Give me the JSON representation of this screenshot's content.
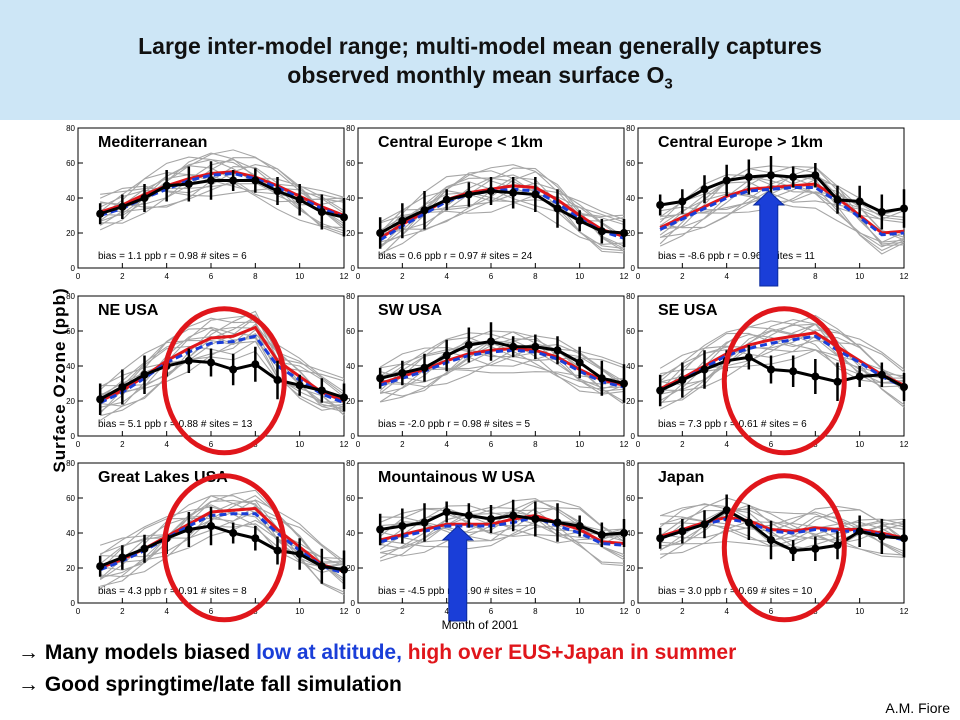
{
  "title": {
    "line1": "Large inter-model range; multi-model mean generally captures",
    "line2": "observed monthly mean surface O",
    "line2_sub": "3"
  },
  "ylabel": "Surface Ozone (ppb)",
  "xlabel": "Month of 2001",
  "bullets": [
    {
      "arrow": "→",
      "pre": " Many models biased ",
      "blue": "low at altitude,",
      "red": " high over EUS+Japan in summer"
    },
    {
      "arrow": "→",
      "text": " Good springtime/late fall simulation"
    }
  ],
  "author": "A.M. Fiore",
  "colors": {
    "observed": "#000000",
    "models": "#a6a6a6",
    "mean": "#e0161b",
    "median": "#1a3ed8",
    "highlight_circle": "#e0161b",
    "arrow": "#1a3ed8",
    "banner": "#cde6f6"
  },
  "chart_data": [
    {
      "type": "line",
      "name": "Mediterranean",
      "stats": "bias = 1.1 ppb   r = 0.98   # sites = 6",
      "x": [
        1,
        2,
        3,
        4,
        5,
        6,
        7,
        8,
        9,
        10,
        11,
        12
      ],
      "xlim": [
        0,
        12
      ],
      "ylim": [
        0,
        80
      ],
      "xticks": [
        "0",
        "2",
        "4",
        "6",
        "8",
        "10",
        "12"
      ],
      "yticks": [
        "0",
        "20",
        "40",
        "60",
        "80"
      ],
      "observed": [
        31,
        35,
        40,
        47,
        48,
        50,
        50,
        50,
        44,
        39,
        32,
        29
      ],
      "mean": [
        32,
        36,
        42,
        47,
        51,
        54,
        55,
        52,
        47,
        41,
        35,
        30
      ],
      "median": [
        30,
        34,
        40,
        45,
        50,
        53,
        54,
        51,
        46,
        40,
        34,
        29
      ],
      "highlight": "none"
    },
    {
      "type": "line",
      "name": "Central Europe < 1km",
      "stats": "bias = 0.6 ppb   r = 0.97   # sites = 24",
      "x": [
        1,
        2,
        3,
        4,
        5,
        6,
        7,
        8,
        9,
        10,
        11,
        12
      ],
      "xlim": [
        0,
        12
      ],
      "ylim": [
        0,
        80
      ],
      "xticks": [
        "0",
        "2",
        "4",
        "6",
        "8",
        "10",
        "12"
      ],
      "yticks": [
        "0",
        "20",
        "40",
        "60",
        "80"
      ],
      "observed": [
        20,
        27,
        33,
        39,
        42,
        44,
        43,
        42,
        34,
        27,
        21,
        20
      ],
      "mean": [
        17,
        25,
        32,
        39,
        43,
        45,
        47,
        46,
        39,
        30,
        22,
        18
      ],
      "median": [
        16,
        24,
        31,
        38,
        42,
        44,
        45,
        44,
        37,
        28,
        21,
        17
      ],
      "highlight": "none"
    },
    {
      "type": "line",
      "name": "Central Europe > 1km",
      "stats": "bias = -8.6 ppb   r = 0.96   # sites = 11",
      "x": [
        1,
        2,
        3,
        4,
        5,
        6,
        7,
        8,
        9,
        10,
        11,
        12
      ],
      "xlim": [
        0,
        12
      ],
      "ylim": [
        0,
        80
      ],
      "xticks": [
        "0",
        "2",
        "4",
        "6",
        "8",
        "10",
        "12"
      ],
      "yticks": [
        "0",
        "20",
        "40",
        "60",
        "80"
      ],
      "observed": [
        36,
        38,
        45,
        50,
        52,
        53,
        52,
        53,
        39,
        38,
        32,
        34
      ],
      "mean": [
        23,
        29,
        35,
        41,
        45,
        46,
        47,
        48,
        40,
        30,
        20,
        21
      ],
      "median": [
        22,
        28,
        34,
        40,
        44,
        45,
        46,
        46,
        38,
        29,
        19,
        20
      ],
      "highlight": "arrow-up"
    },
    {
      "type": "line",
      "name": "NE USA",
      "stats": "bias = 5.1 ppb   r = 0.88   # sites = 13",
      "x": [
        1,
        2,
        3,
        4,
        5,
        6,
        7,
        8,
        9,
        10,
        11,
        12
      ],
      "xlim": [
        0,
        12
      ],
      "ylim": [
        0,
        80
      ],
      "xticks": [
        "0",
        "2",
        "4",
        "6",
        "8",
        "10",
        "12"
      ],
      "yticks": [
        "0",
        "20",
        "40",
        "60",
        "80"
      ],
      "observed": [
        21,
        28,
        35,
        40,
        43,
        42,
        38,
        41,
        32,
        29,
        26,
        22
      ],
      "mean": [
        20,
        26,
        34,
        43,
        50,
        56,
        57,
        62,
        43,
        34,
        25,
        20
      ],
      "median": [
        19,
        25,
        33,
        42,
        48,
        53,
        54,
        57,
        40,
        32,
        24,
        19
      ],
      "highlight": "circle"
    },
    {
      "type": "line",
      "name": "SW USA",
      "stats": "bias = -2.0 ppb   r = 0.98   # sites = 5",
      "x": [
        1,
        2,
        3,
        4,
        5,
        6,
        7,
        8,
        9,
        10,
        11,
        12
      ],
      "xlim": [
        0,
        12
      ],
      "ylim": [
        0,
        80
      ],
      "xticks": [
        "0",
        "2",
        "4",
        "6",
        "8",
        "10",
        "12"
      ],
      "yticks": [
        "0",
        "20",
        "40",
        "60",
        "80"
      ],
      "observed": [
        33,
        36,
        39,
        46,
        52,
        54,
        51,
        51,
        49,
        42,
        33,
        30
      ],
      "mean": [
        30,
        34,
        38,
        43,
        47,
        49,
        50,
        49,
        45,
        38,
        32,
        29
      ],
      "median": [
        29,
        33,
        37,
        42,
        46,
        48,
        49,
        48,
        44,
        37,
        31,
        28
      ],
      "highlight": "none"
    },
    {
      "type": "line",
      "name": "SE USA",
      "stats": "bias = 7.3 ppb   r = 0.61   # sites = 6",
      "x": [
        1,
        2,
        3,
        4,
        5,
        6,
        7,
        8,
        9,
        10,
        11,
        12
      ],
      "xlim": [
        0,
        12
      ],
      "ylim": [
        0,
        80
      ],
      "xticks": [
        "0",
        "2",
        "4",
        "6",
        "8",
        "10",
        "12"
      ],
      "yticks": [
        "0",
        "20",
        "40",
        "60",
        "80"
      ],
      "observed": [
        26,
        32,
        38,
        43,
        45,
        38,
        37,
        34,
        31,
        34,
        35,
        28
      ],
      "mean": [
        27,
        33,
        40,
        47,
        52,
        55,
        57,
        59,
        51,
        43,
        35,
        29
      ],
      "median": [
        26,
        32,
        39,
        46,
        50,
        53,
        55,
        57,
        49,
        42,
        34,
        28
      ],
      "highlight": "circle"
    },
    {
      "type": "line",
      "name": "Great Lakes USA",
      "stats": "bias = 4.3 ppb   r = 0.91   # sites = 8",
      "x": [
        1,
        2,
        3,
        4,
        5,
        6,
        7,
        8,
        9,
        10,
        11,
        12
      ],
      "xlim": [
        0,
        12
      ],
      "ylim": [
        0,
        80
      ],
      "xticks": [
        "0",
        "2",
        "4",
        "6",
        "8",
        "10",
        "12"
      ],
      "yticks": [
        "0",
        "20",
        "40",
        "60",
        "80"
      ],
      "observed": [
        21,
        26,
        31,
        37,
        42,
        44,
        40,
        37,
        30,
        28,
        21,
        19
      ],
      "mean": [
        20,
        25,
        31,
        38,
        45,
        52,
        53,
        54,
        42,
        32,
        22,
        18
      ],
      "median": [
        19,
        24,
        30,
        37,
        44,
        50,
        51,
        51,
        40,
        30,
        21,
        17
      ],
      "highlight": "circle"
    },
    {
      "type": "line",
      "name": "Mountainous W USA",
      "stats": "bias = -4.5 ppb   r = 0.90   # sites = 10",
      "x": [
        1,
        2,
        3,
        4,
        5,
        6,
        7,
        8,
        9,
        10,
        11,
        12
      ],
      "xlim": [
        0,
        12
      ],
      "ylim": [
        0,
        80
      ],
      "xticks": [
        "0",
        "2",
        "4",
        "6",
        "8",
        "10",
        "12"
      ],
      "yticks": [
        "0",
        "20",
        "40",
        "60",
        "80"
      ],
      "observed": [
        42,
        44,
        46,
        52,
        50,
        48,
        50,
        48,
        46,
        44,
        39,
        40
      ],
      "mean": [
        36,
        39,
        42,
        45,
        45,
        45,
        48,
        50,
        46,
        42,
        35,
        34
      ],
      "median": [
        35,
        38,
        41,
        44,
        44,
        44,
        46,
        49,
        44,
        40,
        34,
        33
      ],
      "highlight": "arrow-up"
    },
    {
      "type": "line",
      "name": "Japan",
      "stats": "bias = 3.0 ppb   r = 0.69   # sites = 10",
      "x": [
        1,
        2,
        3,
        4,
        5,
        6,
        7,
        8,
        9,
        10,
        11,
        12
      ],
      "xlim": [
        0,
        12
      ],
      "ylim": [
        0,
        80
      ],
      "xticks": [
        "0",
        "2",
        "4",
        "6",
        "8",
        "10",
        "12"
      ],
      "yticks": [
        "0",
        "20",
        "40",
        "60",
        "80"
      ],
      "observed": [
        37,
        41,
        45,
        53,
        46,
        36,
        30,
        31,
        33,
        41,
        38,
        37
      ],
      "mean": [
        38,
        42,
        46,
        49,
        47,
        42,
        41,
        43,
        42,
        42,
        40,
        37
      ],
      "median": [
        37,
        41,
        45,
        48,
        46,
        41,
        40,
        42,
        41,
        41,
        39,
        36
      ],
      "highlight": "circle"
    }
  ]
}
